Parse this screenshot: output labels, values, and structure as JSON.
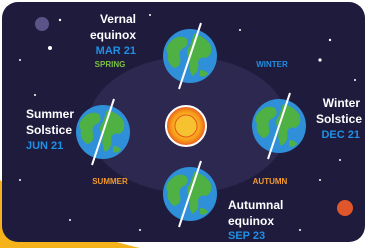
{
  "positions": [
    {
      "label_lines": [
        "Vernal",
        "equinox"
      ],
      "date": "MAR 21"
    },
    {
      "label_lines": [
        "Summer",
        "Solstice"
      ],
      "date": "JUN 21"
    },
    {
      "label_lines": [
        "Winter",
        "Solstice"
      ],
      "date": "DEC 21"
    },
    {
      "label_lines": [
        "Autumnal",
        "equinox"
      ],
      "date": "SEP 23"
    }
  ],
  "seasons": [
    "SPRING",
    "WINTER",
    "SUMMER",
    "AUTUMN"
  ]
}
